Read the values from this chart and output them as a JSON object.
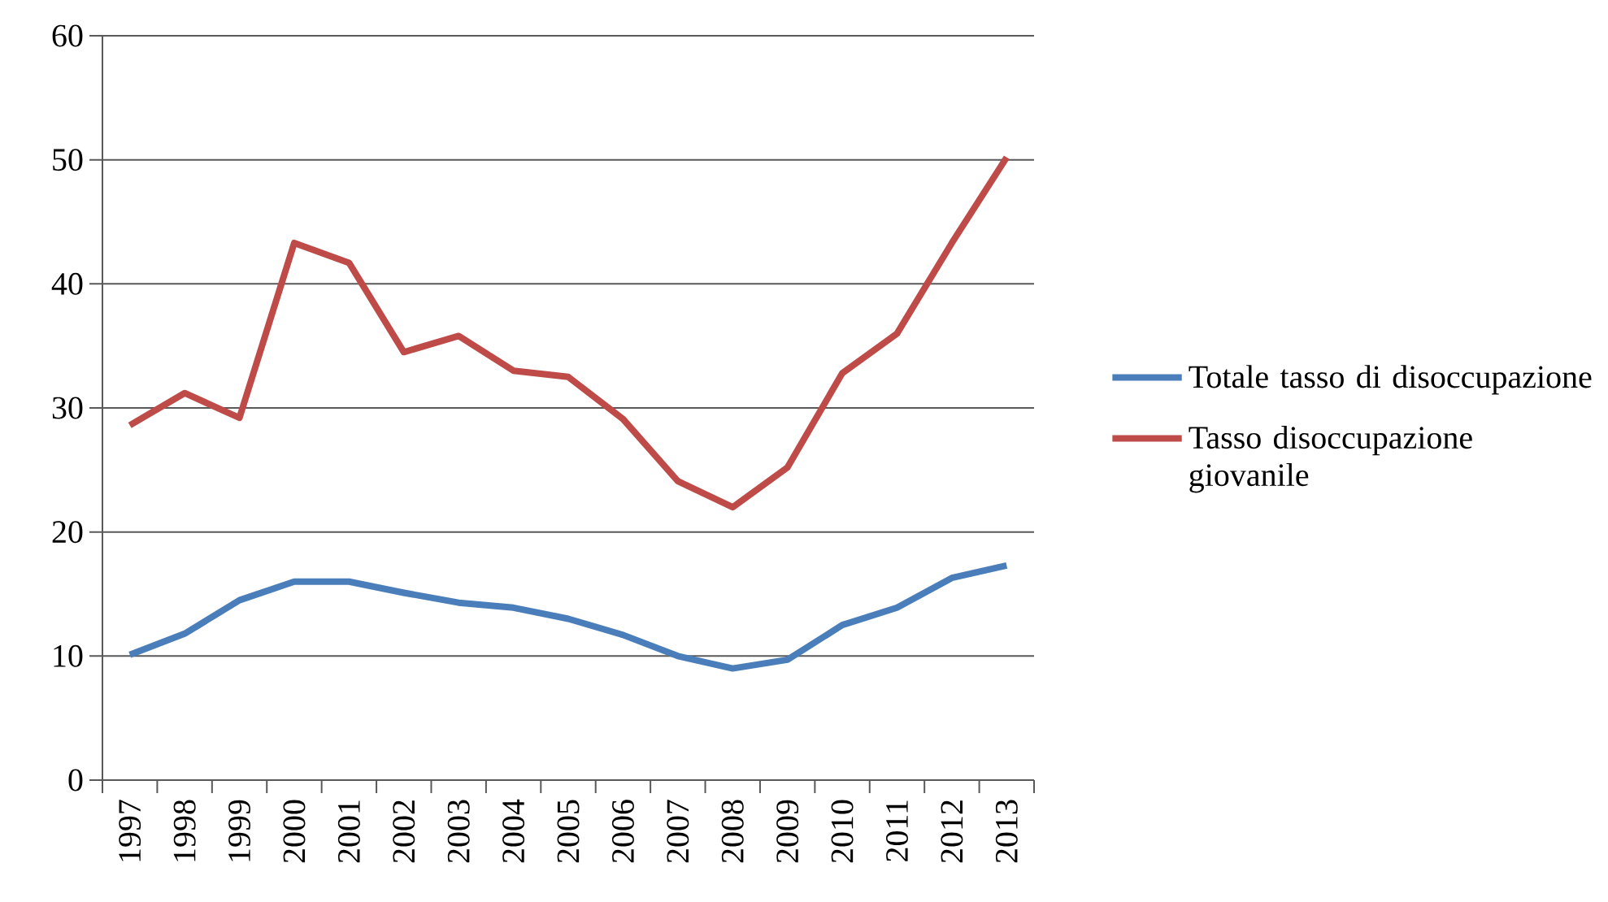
{
  "chart_data": {
    "type": "line",
    "categories": [
      "1997",
      "1998",
      "1999",
      "2000",
      "2001",
      "2002",
      "2003",
      "2004",
      "2005",
      "2006",
      "2007",
      "2008",
      "2009",
      "2010",
      "2011",
      "2012",
      "2013"
    ],
    "series": [
      {
        "name": "Totale tasso di disoccupazione",
        "color": "#4a7ebb",
        "values": [
          10.1,
          11.8,
          14.5,
          16.0,
          16.0,
          15.1,
          14.3,
          13.9,
          13.0,
          11.7,
          10.0,
          9.0,
          9.7,
          12.5,
          13.9,
          16.3,
          17.3
        ]
      },
      {
        "name": "Tasso disoccupazione giovanile",
        "color": "#be4b48",
        "values": [
          28.6,
          31.2,
          29.2,
          43.3,
          41.7,
          34.5,
          35.8,
          33.0,
          32.5,
          29.1,
          24.1,
          22.0,
          25.2,
          32.8,
          36.0,
          43.3,
          50.2
        ]
      }
    ],
    "ylim": [
      0,
      60
    ],
    "yticks": [
      0,
      10,
      20,
      30,
      40,
      50,
      60
    ],
    "grid": "y",
    "legend": "right"
  }
}
